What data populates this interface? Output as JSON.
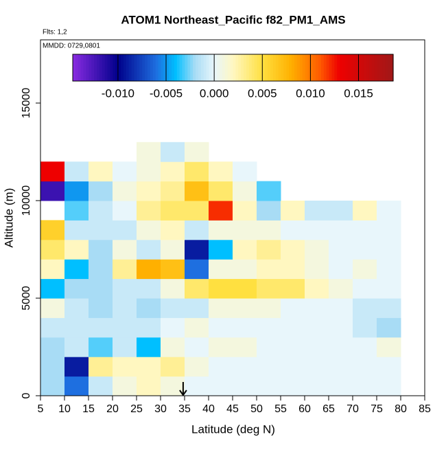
{
  "chart_data": {
    "type": "heatmap",
    "title": "ATOM1 Northeast_Pacific f82_PM1_AMS",
    "annotations": [
      "Flts: 1,2",
      "MMDD: 0729,0801"
    ],
    "x_label": "Latitude (deg N)",
    "y_label": "Altitude (m)",
    "xlim": [
      5,
      85
    ],
    "xticks": [
      5,
      10,
      15,
      20,
      25,
      30,
      35,
      40,
      45,
      50,
      55,
      60,
      65,
      70,
      75,
      80,
      85
    ],
    "ylim": [
      0,
      18240
    ],
    "yticks": [
      0,
      5000,
      10000,
      15000
    ],
    "marker_x": 34.7,
    "clim": [
      -0.0147,
      0.0186
    ],
    "cticks": [
      {
        "value": -0.01,
        "label": "-0.010"
      },
      {
        "value": -0.005,
        "label": "-0.005"
      },
      {
        "value": 0,
        "label": "0.000"
      },
      {
        "value": 0.005,
        "label": "0.005"
      },
      {
        "value": 0.01,
        "label": "0.010"
      },
      {
        "value": 0.015,
        "label": "0.015"
      }
    ],
    "colorscale": [
      [
        -0.0147,
        "#8a2be2"
      ],
      [
        -0.01,
        "#00008b"
      ],
      [
        -0.006,
        "#1e6fe0"
      ],
      [
        -0.004,
        "#00bfff"
      ],
      [
        -0.002,
        "#a8dcf5"
      ],
      [
        0,
        "#e8f6fb"
      ],
      [
        0.002,
        "#fff7c0"
      ],
      [
        0.005,
        "#ffe040"
      ],
      [
        0.008,
        "#ffb000"
      ],
      [
        0.011,
        "#ff5a00"
      ],
      [
        0.013,
        "#ee0000"
      ],
      [
        0.0186,
        "#a01818"
      ]
    ],
    "x_bins": [
      5,
      10,
      15,
      20,
      25,
      30,
      35,
      40,
      45,
      50,
      55,
      60,
      65,
      70,
      75,
      80
    ],
    "y_bins": [
      0,
      1000,
      2000,
      3000,
      4000,
      5000,
      6000,
      7000,
      8000,
      9000,
      10000,
      11000,
      12000,
      13000
    ],
    "z": [
      [
        -0.002,
        -0.006,
        -0.001,
        0.001,
        0.002,
        0.001,
        0,
        0,
        0,
        0,
        0,
        0,
        0,
        0,
        0
      ],
      [
        -0.002,
        -0.009,
        0.003,
        0.002,
        0.002,
        0.003,
        0.001,
        0,
        0,
        0,
        0,
        0,
        0,
        0,
        0
      ],
      [
        -0.002,
        -0.001,
        -0.003,
        -0.001,
        -0.004,
        0.001,
        0,
        0.001,
        0.001,
        0,
        0,
        0,
        0,
        0,
        0.001
      ],
      [
        -0.001,
        -0.001,
        -0.001,
        -0.001,
        -0.001,
        0,
        0.001,
        0,
        0,
        0,
        0,
        0,
        0,
        -0.001,
        -0.002
      ],
      [
        0.001,
        -0.001,
        -0.002,
        -0.001,
        -0.002,
        -0.001,
        -0.001,
        0.001,
        0.001,
        0.001,
        0,
        0,
        0,
        -0.001,
        -0.001
      ],
      [
        -0.004,
        -0.002,
        -0.002,
        -0.001,
        -0.001,
        0.001,
        0.004,
        0.005,
        0.005,
        0.004,
        0.004,
        0.002,
        0.001,
        0,
        0
      ],
      [
        0.002,
        -0.004,
        -0.002,
        0.003,
        0.008,
        0.007,
        -0.006,
        0.001,
        0.001,
        0.002,
        0.002,
        0.001,
        0,
        0.001,
        0
      ],
      [
        0.004,
        0.002,
        -0.002,
        0.001,
        -0.001,
        0.001,
        -0.009,
        -0.004,
        0.002,
        0.003,
        0.002,
        0.001,
        0,
        0,
        0
      ],
      [
        0.006,
        -0.001,
        -0.001,
        -0.001,
        0.001,
        0.002,
        -0.001,
        0.001,
        0.001,
        0.001,
        0,
        0,
        0,
        0,
        0
      ],
      [
        null,
        -0.003,
        -0.001,
        0,
        0.003,
        0.004,
        0.004,
        0.012,
        0.002,
        -0.002,
        0.002,
        -0.001,
        -0.001,
        0.002,
        0
      ],
      [
        -0.012,
        -0.005,
        -0.002,
        0.001,
        0.002,
        0.003,
        0.007,
        0.004,
        0.001,
        -0.003,
        null,
        null,
        null,
        null,
        null
      ],
      [
        0.013,
        -0.001,
        0.002,
        0,
        0.001,
        0.002,
        0.004,
        0.002,
        0,
        null,
        null,
        null,
        null,
        null,
        null
      ],
      [
        null,
        null,
        null,
        null,
        0.001,
        -0.001,
        0.001,
        null,
        null,
        null,
        null,
        null,
        null,
        null,
        null
      ]
    ]
  }
}
